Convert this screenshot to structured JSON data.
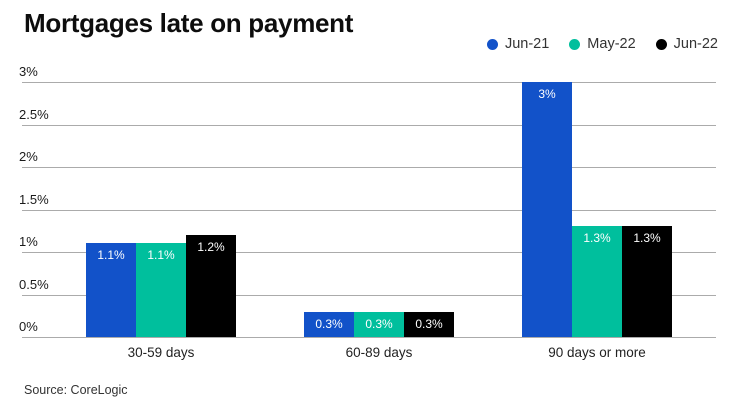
{
  "header": {
    "title": "Mortgages late on payment"
  },
  "footer": {
    "source": "Source: CoreLogic"
  },
  "colors": {
    "background": "#ffffff",
    "gridline": "#ababab",
    "axis_text": "#1a1a1a",
    "bar_label_text": "#ffffff",
    "blue": "#1252c9",
    "teal": "#00bf9d",
    "black": "#000000"
  },
  "chart_data": {
    "type": "bar",
    "title": "Mortgages late on payment",
    "categories": [
      "30-59 days",
      "60-89 days",
      "90 days or more"
    ],
    "series": [
      {
        "name": "Jun-21",
        "color": "#1252c9",
        "values": [
          1.1,
          0.3,
          3.0
        ],
        "labels": [
          "1.1%",
          "0.3%",
          "3%"
        ]
      },
      {
        "name": "May-22",
        "color": "#00bf9d",
        "values": [
          1.1,
          0.3,
          1.3
        ],
        "labels": [
          "1.1%",
          "0.3%",
          "1.3%"
        ]
      },
      {
        "name": "Jun-22",
        "color": "#000000",
        "values": [
          1.2,
          0.3,
          1.3
        ],
        "labels": [
          "1.2%",
          "0.3%",
          "1.3%"
        ]
      }
    ],
    "ylim": [
      0,
      3
    ],
    "yticks": [
      "3%",
      "2.5%",
      "2%",
      "1.5%",
      "1%",
      "0.5%",
      "0%"
    ],
    "xlabel": "",
    "ylabel": "",
    "grid": true,
    "legend_position": "top-right",
    "source": "Source: CoreLogic"
  }
}
